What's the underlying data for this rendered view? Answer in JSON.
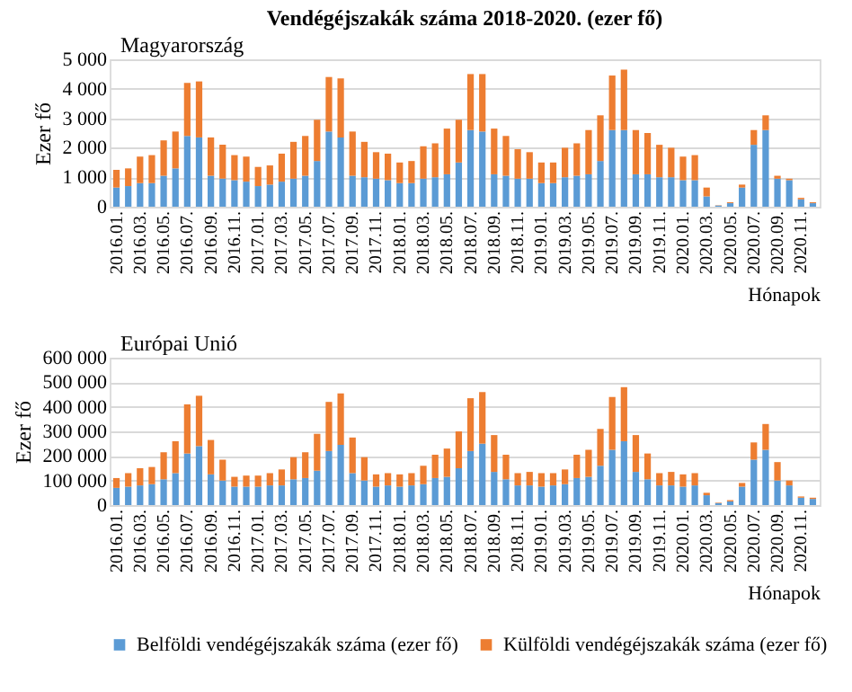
{
  "chart_data": [
    {
      "type": "bar",
      "title": "Vendégéjszakák száma 2018-2020. (ezer fő)",
      "subtitle": "Magyarország",
      "ylabel": "Ezer fő",
      "xlabel": "Hónapok",
      "stacked": true,
      "grid": "y",
      "categories": [
        "2016.01.",
        null,
        "2016.03.",
        null,
        "2016.05.",
        null,
        "2016.07.",
        null,
        "2016.09.",
        null,
        "2016.11.",
        null,
        "2017.01.",
        null,
        "2017.03.",
        null,
        "2017.05.",
        null,
        "2017.07.",
        null,
        "2017.09.",
        null,
        "2017.11.",
        null,
        "2018.01.",
        null,
        "2018.03.",
        null,
        "2018.05.",
        null,
        "2018.07.",
        null,
        "2018.09.",
        null,
        "2018.11.",
        null,
        "2019.01.",
        null,
        "2019.03.",
        null,
        "2019.05.",
        null,
        "2019.07.",
        null,
        "2019.09.",
        null,
        "2019.11.",
        null,
        "2020.01.",
        null,
        "2020.03.",
        null,
        "2020.05.",
        null,
        "2020.07.",
        null,
        "2020.09.",
        null,
        "2020.11.",
        null
      ],
      "ylim": [
        0,
        5000
      ],
      "yticks": [
        0,
        {
          "value": 1000,
          "label": "1 000"
        },
        {
          "value": 2000,
          "label": "2 000"
        },
        {
          "value": 3000,
          "label": "3 000"
        },
        {
          "value": 4000,
          "label": "4 000"
        },
        {
          "value": 5000,
          "label": "5 000"
        }
      ],
      "series": [
        {
          "color": "#5b9bd5",
          "values": [
            650,
            700,
            800,
            800,
            1050,
            1300,
            2400,
            2350,
            1050,
            950,
            900,
            850,
            700,
            750,
            850,
            950,
            1050,
            1550,
            2550,
            2350,
            1050,
            1000,
            950,
            900,
            800,
            800,
            950,
            1000,
            1100,
            1500,
            2600,
            2550,
            1100,
            1050,
            950,
            950,
            800,
            800,
            1000,
            1050,
            1100,
            1550,
            2600,
            2600,
            1100,
            1100,
            1000,
            1000,
            900,
            900,
            350,
            40,
            120,
            650,
            2100,
            2600,
            950,
            900,
            250,
            120
          ]
        },
        {
          "color": "#ed7d31",
          "values": [
            600,
            600,
            900,
            950,
            1200,
            1250,
            1800,
            1900,
            1300,
            1150,
            850,
            850,
            650,
            650,
            950,
            1250,
            1350,
            1400,
            1850,
            2000,
            1500,
            1200,
            900,
            900,
            700,
            750,
            1100,
            1150,
            1550,
            1450,
            1900,
            1950,
            1550,
            1350,
            1000,
            900,
            700,
            700,
            1000,
            1100,
            1500,
            1550,
            1850,
            2050,
            1500,
            1400,
            1100,
            1000,
            800,
            850,
            300,
            10,
            30,
            100,
            500,
            500,
            100,
            50,
            50,
            30
          ]
        }
      ]
    },
    {
      "type": "bar",
      "subtitle": "Európai Unió",
      "ylabel": "Ezer fő",
      "xlabel": "Hónapok",
      "stacked": true,
      "grid": "y",
      "legend": "bottom",
      "categories": [
        "2016.01.",
        null,
        "2016.03.",
        null,
        "2016.05.",
        null,
        "2016.07.",
        null,
        "2016.09.",
        null,
        "2016.11.",
        null,
        "2017.01.",
        null,
        "2017.03.",
        null,
        "2017.05.",
        null,
        "2017.07.",
        null,
        "2017.09.",
        null,
        "2017.11.",
        null,
        "2018.01.",
        null,
        "2018.03.",
        null,
        "2018.05.",
        null,
        "2018.07.",
        null,
        "2018.09.",
        null,
        "2018.11.",
        null,
        "2019.01.",
        null,
        "2019.03.",
        null,
        "2019.05.",
        null,
        "2019.07.",
        null,
        "2019.09.",
        null,
        "2019.11.",
        null,
        "2020.01.",
        null,
        "2020.03.",
        null,
        "2020.05.",
        null,
        "2020.07.",
        null,
        "2020.09.",
        null,
        "2020.11.",
        null
      ],
      "ylim": [
        0,
        600000
      ],
      "yticks": [
        0,
        {
          "value": 100000,
          "label": "100 000"
        },
        {
          "value": 200000,
          "label": "200 000"
        },
        {
          "value": 300000,
          "label": "300 000"
        },
        {
          "value": 400000,
          "label": "400 000"
        },
        {
          "value": 500000,
          "label": "500 000"
        },
        {
          "value": 600000,
          "label": "600 000"
        }
      ],
      "series": [
        {
          "name": "Belföldi vendégéjszakák száma (ezer fő)",
          "color": "#5b9bd5",
          "values": [
            70000,
            75000,
            80000,
            85000,
            105000,
            130000,
            210000,
            240000,
            125000,
            100000,
            75000,
            75000,
            75000,
            80000,
            80000,
            105000,
            110000,
            140000,
            220000,
            245000,
            130000,
            100000,
            75000,
            80000,
            75000,
            80000,
            85000,
            110000,
            115000,
            150000,
            220000,
            250000,
            135000,
            105000,
            80000,
            80000,
            75000,
            80000,
            85000,
            110000,
            115000,
            160000,
            225000,
            260000,
            135000,
            105000,
            80000,
            80000,
            75000,
            80000,
            40000,
            8000,
            15000,
            75000,
            185000,
            225000,
            100000,
            80000,
            30000,
            25000
          ]
        },
        {
          "name": "Külföldi vendégéjszakák száma (ezer fő)",
          "color": "#ed7d31",
          "values": [
            40000,
            55000,
            70000,
            70000,
            110000,
            130000,
            200000,
            205000,
            140000,
            85000,
            40000,
            45000,
            45000,
            50000,
            65000,
            90000,
            105000,
            150000,
            200000,
            210000,
            145000,
            95000,
            50000,
            50000,
            50000,
            50000,
            75000,
            95000,
            115000,
            150000,
            215000,
            210000,
            150000,
            100000,
            50000,
            55000,
            55000,
            50000,
            60000,
            95000,
            110000,
            150000,
            215000,
            220000,
            150000,
            105000,
            50000,
            55000,
            50000,
            50000,
            10000,
            2000,
            5000,
            15000,
            70000,
            105000,
            75000,
            20000,
            5000,
            5000
          ]
        }
      ]
    }
  ]
}
